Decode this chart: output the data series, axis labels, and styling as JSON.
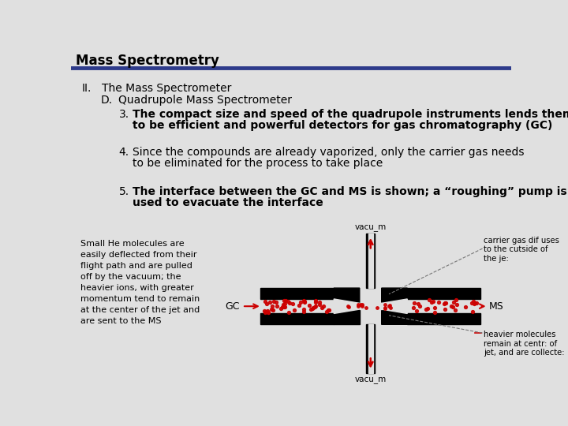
{
  "title": "Mass Spectrometry",
  "title_fontsize": 12,
  "title_color": "#000000",
  "header_line_color": "#2E3B8B",
  "bg_color": "#E0E0E0",
  "text_color": "#000000",
  "line1_roman": "II.",
  "line1_text": "The Mass Spectrometer",
  "line2_letter": "D.",
  "line2_text": "Quadrupole Mass Spectrometer",
  "item3_num": "3.",
  "item3_text1": "The compact size and speed of the quadrupole instruments lends them",
  "item3_text2": "to be efficient and powerful detectors for gas chromatography (GC)",
  "item4_num": "4.",
  "item4_text1": "Since the compounds are already vaporized, only the carrier gas needs",
  "item4_text2": "to be eliminated for the process to take place",
  "item5_num": "5.",
  "item5_text1": "The interface between the GC and MS is shown; a “roughing” pump is",
  "item5_text2": "used to evacuate the interface",
  "side_text": "Small He molecules are\neasily deflected from their\nflight path and are pulled\noff by the vacuum; the\nheavier ions, with greater\nmomentum tend to remain\nat the center of the jet and\nare sent to the MS",
  "label_vacuum_top": "vacu_m",
  "label_vacuum_bottom": "vacu_m",
  "label_gc": "GC",
  "label_ms": "MS",
  "label_carrier": "carrier gas dif uses\nto the cutside of\nthe je:",
  "label_heavier": "heavier molecules\nremain at centr: of\njet, and are collecte:"
}
